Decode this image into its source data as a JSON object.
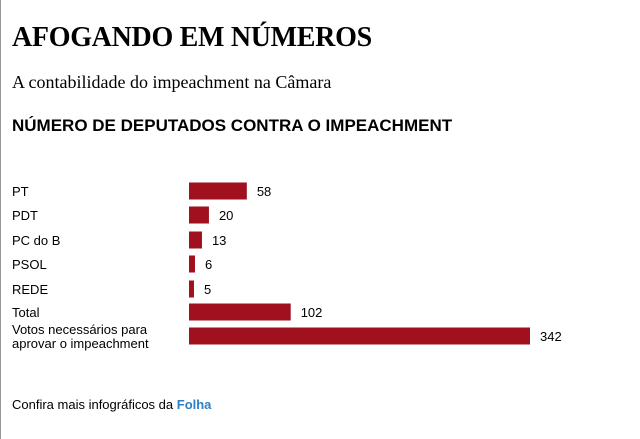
{
  "header": {
    "title": "AFOGANDO EM NÚMEROS",
    "subtitle": "A contabilidade do impeachment na Câmara"
  },
  "chart_data": {
    "type": "bar",
    "orientation": "horizontal",
    "title": "NÚMERO DE DEPUTADOS CONTRA O IMPEACHMENT",
    "categories": [
      [
        "PT"
      ],
      [
        "PDT"
      ],
      [
        "PC do B"
      ],
      [
        "PSOL"
      ],
      [
        "REDE"
      ],
      [
        "Total"
      ],
      [
        "Votos necessários para",
        "aprovar o impeachment"
      ]
    ],
    "values": [
      58,
      20,
      13,
      6,
      5,
      102,
      342
    ],
    "xlim": [
      0,
      342
    ],
    "grid": false,
    "bar_color": "#a0101f",
    "data_labels": true
  },
  "footer": {
    "text": "Confira mais infográficos da ",
    "link": "Folha",
    "link_color": "#2e7fc4"
  }
}
